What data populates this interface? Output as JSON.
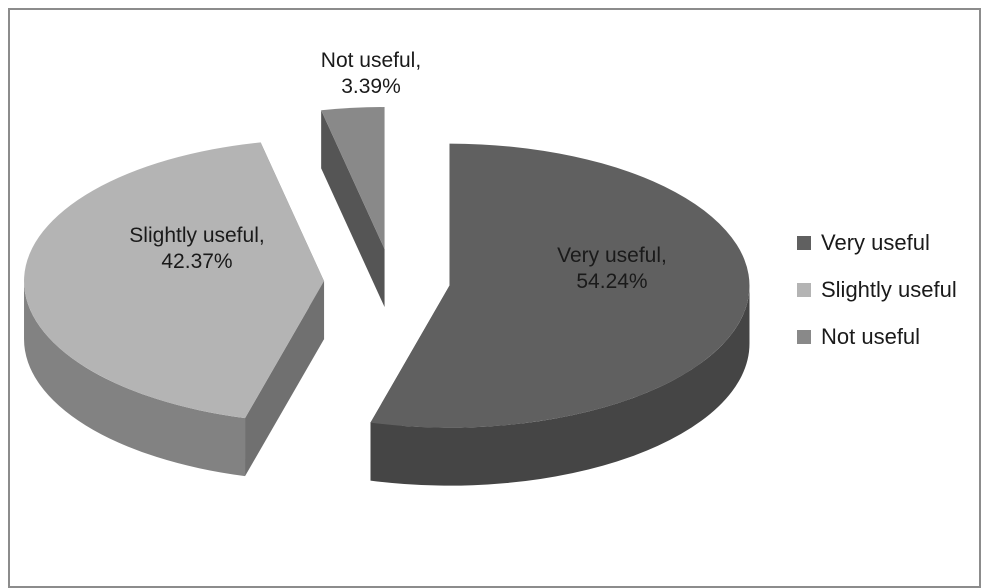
{
  "chart_data": {
    "type": "pie",
    "style": "3d-exploded",
    "title": "",
    "slices": [
      {
        "name": "Very useful",
        "value": 54.24,
        "label_name": "Very useful,",
        "label_pct": "54.24%",
        "color": "#606060"
      },
      {
        "name": "Slightly useful",
        "value": 42.37,
        "label_name": "Slightly useful,",
        "label_pct": "42.37%",
        "color": "#b4b4b4"
      },
      {
        "name": "Not useful",
        "value": 3.39,
        "label_name": "Not useful,",
        "label_pct": "3.39%",
        "color": "#898989"
      }
    ],
    "legend": {
      "placement": "right",
      "items": [
        "Very useful",
        "Slightly useful",
        "Not useful"
      ]
    }
  }
}
